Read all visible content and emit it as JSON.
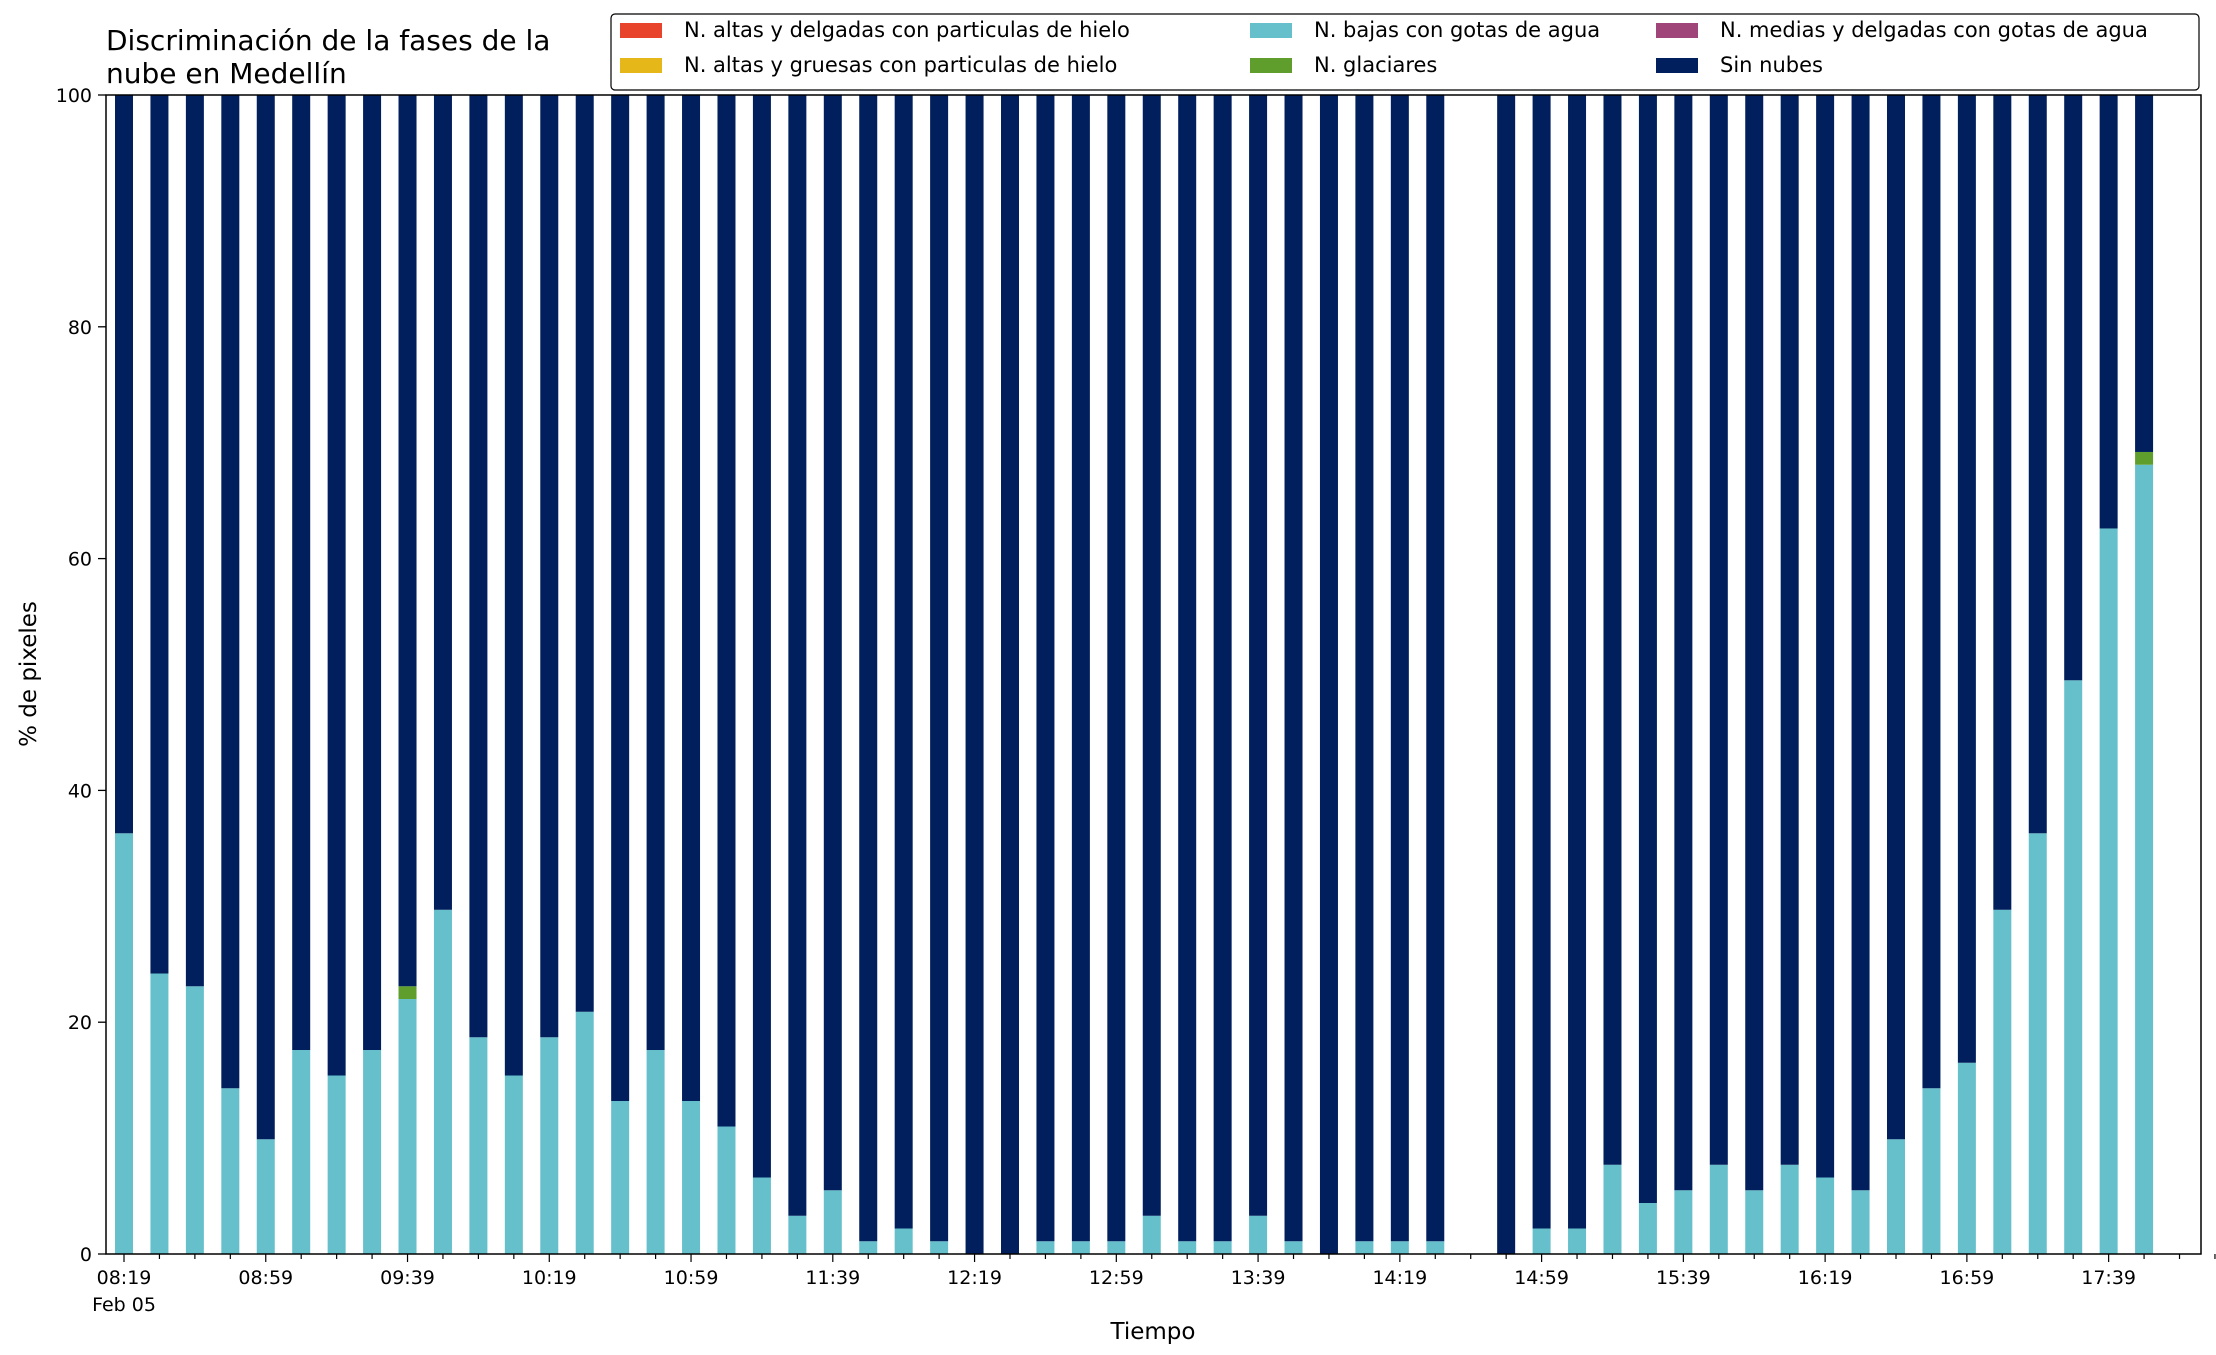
{
  "chart_data": {
    "type": "bar",
    "stacked": true,
    "title": "Discriminación de la fases de la\nnube en Medellín",
    "xlabel": "Tiempo",
    "ylabel": "% de pixeles",
    "ylim": [
      0,
      100
    ],
    "yticks": [
      0,
      20,
      40,
      60,
      80,
      100
    ],
    "x_start": "08:19",
    "x_step_minutes": 10,
    "x_date_label": "Feb 05",
    "x_tick_labels": [
      "08:19",
      "08:59",
      "09:39",
      "10:19",
      "10:59",
      "11:39",
      "12:19",
      "12:59",
      "13:39",
      "14:19",
      "14:59",
      "15:39",
      "16:19",
      "16:59",
      "17:39"
    ],
    "legend_position": "top-right",
    "grid": false,
    "series": [
      {
        "name": "N. altas y delgadas con particulas de hielo",
        "color": "#e8442b"
      },
      {
        "name": "N. altas y gruesas con particulas de hielo",
        "color": "#e6b719"
      },
      {
        "name": "N. bajas con gotas de agua",
        "color": "#66c0cc"
      },
      {
        "name": "N. glaciares",
        "color": "#5f9e2c"
      },
      {
        "name": "N. medias y delgadas con gotas de agua",
        "color": "#a0457a"
      },
      {
        "name": "Sin nubes",
        "color": "#001f5c"
      }
    ],
    "bars": [
      {
        "time": "08:19",
        "values": [
          0,
          0,
          36.3,
          0,
          0,
          63.7
        ]
      },
      {
        "time": "08:29",
        "values": [
          0,
          0,
          24.2,
          0,
          0,
          75.8
        ]
      },
      {
        "time": "08:39",
        "values": [
          0,
          0,
          23.1,
          0,
          0,
          76.9
        ]
      },
      {
        "time": "08:49",
        "values": [
          0,
          0,
          14.3,
          0,
          0,
          85.7
        ]
      },
      {
        "time": "08:59",
        "values": [
          0,
          0,
          9.9,
          0,
          0,
          90.1
        ]
      },
      {
        "time": "09:09",
        "values": [
          0,
          0,
          17.6,
          0,
          0,
          82.4
        ]
      },
      {
        "time": "09:19",
        "values": [
          0,
          0,
          15.4,
          0,
          0,
          84.6
        ]
      },
      {
        "time": "09:29",
        "values": [
          0,
          0,
          17.6,
          0,
          0,
          82.4
        ]
      },
      {
        "time": "09:39",
        "values": [
          0,
          0,
          22.0,
          1.1,
          0,
          76.9
        ]
      },
      {
        "time": "09:49",
        "values": [
          0,
          0,
          29.7,
          0,
          0,
          70.3
        ]
      },
      {
        "time": "09:59",
        "values": [
          0,
          0,
          18.7,
          0,
          0,
          81.3
        ]
      },
      {
        "time": "10:09",
        "values": [
          0,
          0,
          15.4,
          0,
          0,
          84.6
        ]
      },
      {
        "time": "10:19",
        "values": [
          0,
          0,
          18.7,
          0,
          0,
          81.3
        ]
      },
      {
        "time": "10:29",
        "values": [
          0,
          0,
          20.9,
          0,
          0,
          79.1
        ]
      },
      {
        "time": "10:39",
        "values": [
          0,
          0,
          13.2,
          0,
          0,
          86.8
        ]
      },
      {
        "time": "10:49",
        "values": [
          0,
          0,
          17.6,
          0,
          0,
          82.4
        ]
      },
      {
        "time": "10:59",
        "values": [
          0,
          0,
          13.2,
          0,
          0,
          86.8
        ]
      },
      {
        "time": "11:09",
        "values": [
          0,
          0,
          11.0,
          0,
          0,
          89.0
        ]
      },
      {
        "time": "11:19",
        "values": [
          0,
          0,
          6.6,
          0,
          0,
          93.4
        ]
      },
      {
        "time": "11:29",
        "values": [
          0,
          0,
          3.3,
          0,
          0,
          96.7
        ]
      },
      {
        "time": "11:39",
        "values": [
          0,
          0,
          5.5,
          0,
          0,
          94.5
        ]
      },
      {
        "time": "11:49",
        "values": [
          0,
          0,
          1.1,
          0,
          0,
          98.9
        ]
      },
      {
        "time": "11:59",
        "values": [
          0,
          0,
          2.2,
          0,
          0,
          97.8
        ]
      },
      {
        "time": "12:09",
        "values": [
          0,
          0,
          1.1,
          0,
          0,
          98.9
        ]
      },
      {
        "time": "12:19",
        "values": [
          0,
          0,
          0,
          0,
          0,
          100
        ]
      },
      {
        "time": "12:29",
        "values": [
          0,
          0,
          0,
          0,
          0,
          100
        ]
      },
      {
        "time": "12:39",
        "values": [
          0,
          0,
          1.1,
          0,
          0,
          98.9
        ]
      },
      {
        "time": "12:49",
        "values": [
          0,
          0,
          1.1,
          0,
          0,
          98.9
        ]
      },
      {
        "time": "12:59",
        "values": [
          0,
          0,
          1.1,
          0,
          0,
          98.9
        ]
      },
      {
        "time": "13:09",
        "values": [
          0,
          0,
          3.3,
          0,
          0,
          96.7
        ]
      },
      {
        "time": "13:19",
        "values": [
          0,
          0,
          1.1,
          0,
          0,
          98.9
        ]
      },
      {
        "time": "13:29",
        "values": [
          0,
          0,
          1.1,
          0,
          0,
          98.9
        ]
      },
      {
        "time": "13:39",
        "values": [
          0,
          0,
          3.3,
          0,
          0,
          96.7
        ]
      },
      {
        "time": "13:49",
        "values": [
          0,
          0,
          1.1,
          0,
          0,
          98.9
        ]
      },
      {
        "time": "13:59",
        "values": [
          0,
          0,
          0,
          0,
          0,
          100
        ]
      },
      {
        "time": "14:09",
        "values": [
          0,
          0,
          1.1,
          0,
          0,
          98.9
        ]
      },
      {
        "time": "14:19",
        "values": [
          0,
          0,
          1.1,
          0,
          0,
          98.9
        ]
      },
      {
        "time": "14:29",
        "values": [
          0,
          0,
          1.1,
          0,
          0,
          98.9
        ]
      },
      {
        "time": "14:49",
        "values": [
          0,
          0,
          0,
          0,
          0,
          100
        ]
      },
      {
        "time": "14:59",
        "values": [
          0,
          0,
          2.2,
          0,
          0,
          97.8
        ]
      },
      {
        "time": "15:09",
        "values": [
          0,
          0,
          2.2,
          0,
          0,
          97.8
        ]
      },
      {
        "time": "15:19",
        "values": [
          0,
          0,
          7.7,
          0,
          0,
          92.3
        ]
      },
      {
        "time": "15:29",
        "values": [
          0,
          0,
          4.4,
          0,
          0,
          95.6
        ]
      },
      {
        "time": "15:39",
        "values": [
          0,
          0,
          5.5,
          0,
          0,
          94.5
        ]
      },
      {
        "time": "15:49",
        "values": [
          0,
          0,
          7.7,
          0,
          0,
          92.3
        ]
      },
      {
        "time": "15:59",
        "values": [
          0,
          0,
          5.5,
          0,
          0,
          94.5
        ]
      },
      {
        "time": "16:09",
        "values": [
          0,
          0,
          7.7,
          0,
          0,
          92.3
        ]
      },
      {
        "time": "16:19",
        "values": [
          0,
          0,
          6.6,
          0,
          0,
          93.4
        ]
      },
      {
        "time": "16:29",
        "values": [
          0,
          0,
          5.5,
          0,
          0,
          94.5
        ]
      },
      {
        "time": "16:39",
        "values": [
          0,
          0,
          9.9,
          0,
          0,
          90.1
        ]
      },
      {
        "time": "16:49",
        "values": [
          0,
          0,
          14.3,
          0,
          0,
          85.7
        ]
      },
      {
        "time": "16:59",
        "values": [
          0,
          0,
          16.5,
          0,
          0,
          83.5
        ]
      },
      {
        "time": "17:09",
        "values": [
          0,
          0,
          29.7,
          0,
          0,
          70.3
        ]
      },
      {
        "time": "17:19",
        "values": [
          0,
          0,
          36.3,
          0,
          0,
          63.7
        ]
      },
      {
        "time": "17:29",
        "values": [
          0,
          0,
          49.5,
          0,
          0,
          50.5
        ]
      },
      {
        "time": "17:39",
        "values": [
          0,
          0,
          62.6,
          0,
          0,
          37.4
        ]
      },
      {
        "time": "17:49",
        "values": [
          0,
          0,
          68.1,
          1.1,
          0,
          30.8
        ]
      }
    ]
  }
}
